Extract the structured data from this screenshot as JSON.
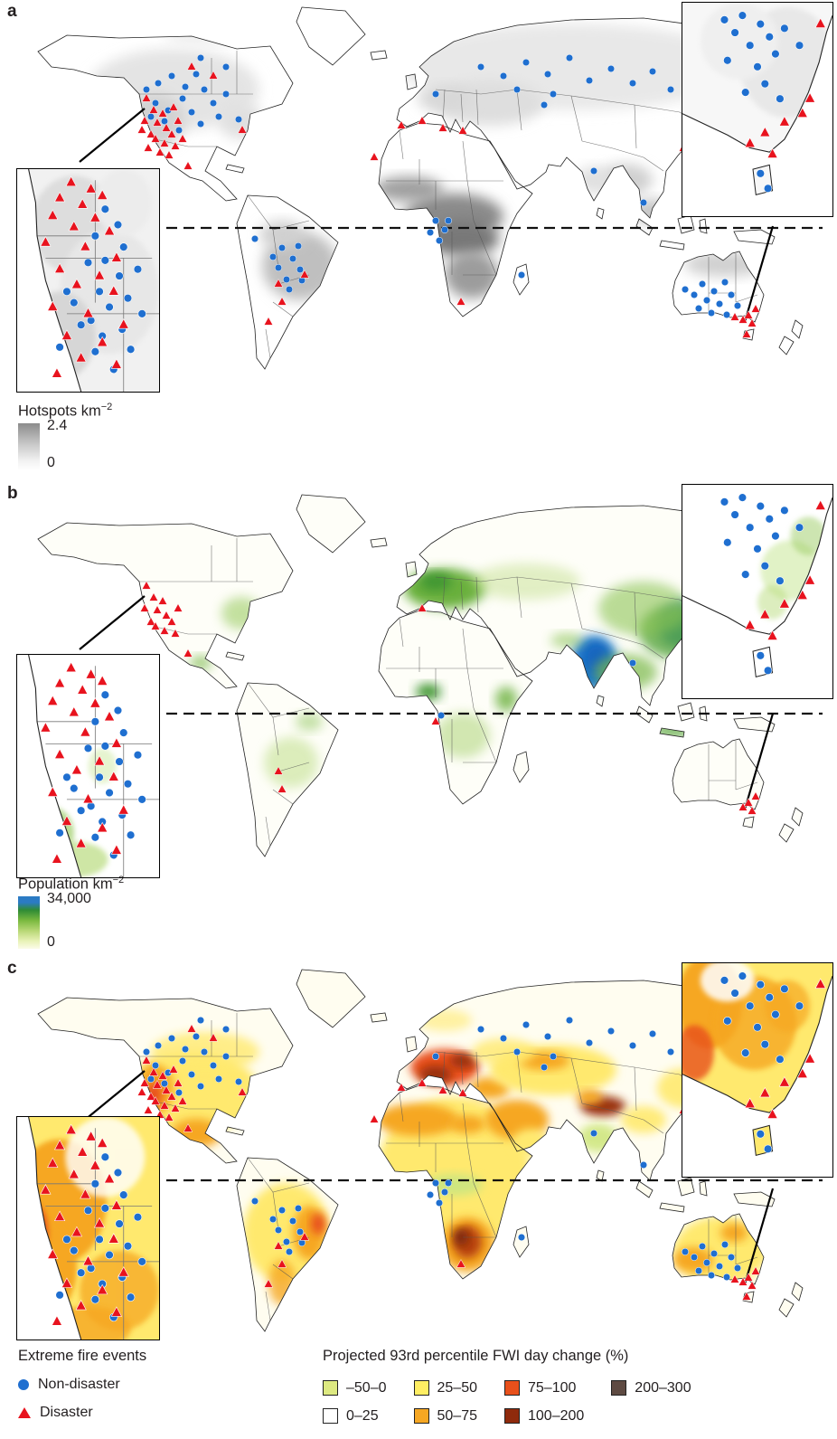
{
  "panels": {
    "a": {
      "label": "a",
      "legend_title": "Hotspots km",
      "legend_sup": "−2",
      "legend_max": "2.4",
      "legend_min": "0"
    },
    "b": {
      "label": "b",
      "legend_title": "Population km",
      "legend_sup": "−2",
      "legend_max": "34,000",
      "legend_min": "0"
    },
    "c": {
      "label": "c"
    }
  },
  "legend": {
    "events_title": "Extreme fire events",
    "non_disaster": "Non-disaster",
    "disaster": "Disaster",
    "fwi_title": "Projected 93rd percentile FWI day change (%)",
    "classes": [
      {
        "label": "–50–0",
        "color": "#dde981"
      },
      {
        "label": "0–25",
        "color": "#ffffff"
      },
      {
        "label": "25–50",
        "color": "#ffee63"
      },
      {
        "label": "50–75",
        "color": "#f6a723"
      },
      {
        "label": "75–100",
        "color": "#e8501b"
      },
      {
        "label": "100–200",
        "color": "#8f2a0c"
      },
      {
        "label": "200–300",
        "color": "#5e4a42"
      }
    ]
  },
  "colors": {
    "non_disaster": "#1f6fd0",
    "disaster": "#e8131e"
  },
  "events": {
    "circles": [
      [
        150,
        95
      ],
      [
        163,
        88
      ],
      [
        178,
        80
      ],
      [
        193,
        92
      ],
      [
        205,
        78
      ],
      [
        160,
        110
      ],
      [
        174,
        118
      ],
      [
        190,
        105
      ],
      [
        200,
        120
      ],
      [
        214,
        95
      ],
      [
        170,
        130
      ],
      [
        186,
        140
      ],
      [
        155,
        125
      ],
      [
        210,
        133
      ],
      [
        224,
        110
      ],
      [
        238,
        100
      ],
      [
        230,
        125
      ],
      [
        210,
        60
      ],
      [
        238,
        70
      ],
      [
        252,
        128
      ],
      [
        520,
        70
      ],
      [
        545,
        80
      ],
      [
        570,
        65
      ],
      [
        594,
        78
      ],
      [
        618,
        60
      ],
      [
        640,
        85
      ],
      [
        664,
        72
      ],
      [
        688,
        88
      ],
      [
        710,
        75
      ],
      [
        730,
        95
      ],
      [
        600,
        100
      ],
      [
        560,
        95
      ],
      [
        754,
        85
      ],
      [
        470,
        100
      ],
      [
        590,
        112
      ],
      [
        300,
        270
      ],
      [
        312,
        282
      ],
      [
        296,
        292
      ],
      [
        320,
        294
      ],
      [
        305,
        305
      ],
      [
        318,
        268
      ],
      [
        290,
        280
      ],
      [
        308,
        316
      ],
      [
        322,
        306
      ],
      [
        270,
        260
      ],
      [
        470,
        240
      ],
      [
        480,
        250
      ],
      [
        464,
        253
      ],
      [
        474,
        262
      ],
      [
        484,
        240
      ],
      [
        565,
        300
      ],
      [
        700,
        220
      ],
      [
        754,
        190
      ],
      [
        645,
        185
      ],
      [
        765,
        310
      ],
      [
        778,
        318
      ],
      [
        790,
        308
      ],
      [
        770,
        328
      ],
      [
        784,
        332
      ],
      [
        756,
        322
      ],
      [
        797,
        322
      ],
      [
        775,
        342
      ],
      [
        761,
        337
      ],
      [
        746,
        316
      ],
      [
        804,
        334
      ],
      [
        792,
        344
      ]
    ],
    "triangles": [
      [
        150,
        105
      ],
      [
        158,
        118
      ],
      [
        148,
        130
      ],
      [
        162,
        132
      ],
      [
        155,
        145
      ],
      [
        168,
        122
      ],
      [
        172,
        138
      ],
      [
        160,
        150
      ],
      [
        152,
        160
      ],
      [
        170,
        155
      ],
      [
        178,
        145
      ],
      [
        165,
        165
      ],
      [
        175,
        168
      ],
      [
        182,
        158
      ],
      [
        145,
        140
      ],
      [
        185,
        130
      ],
      [
        190,
        150
      ],
      [
        180,
        115
      ],
      [
        200,
        70
      ],
      [
        224,
        80
      ],
      [
        196,
        180
      ],
      [
        256,
        140
      ],
      [
        455,
        130
      ],
      [
        478,
        138
      ],
      [
        500,
        141
      ],
      [
        432,
        135
      ],
      [
        402,
        170
      ],
      [
        285,
        352
      ],
      [
        300,
        330
      ],
      [
        325,
        300
      ],
      [
        296,
        310
      ],
      [
        498,
        330
      ],
      [
        744,
        160
      ],
      [
        816,
        345
      ],
      [
        824,
        338
      ],
      [
        810,
        350
      ],
      [
        801,
        347
      ],
      [
        820,
        354
      ],
      [
        814,
        366
      ]
    ]
  },
  "events_b": {
    "circles": [
      [
        688,
        190
      ],
      [
        756,
        190
      ],
      [
        476,
        248
      ]
    ],
    "triangles": [
      [
        150,
        105
      ],
      [
        158,
        118
      ],
      [
        148,
        130
      ],
      [
        162,
        132
      ],
      [
        155,
        145
      ],
      [
        168,
        122
      ],
      [
        172,
        138
      ],
      [
        160,
        150
      ],
      [
        170,
        155
      ],
      [
        178,
        145
      ],
      [
        182,
        158
      ],
      [
        185,
        130
      ],
      [
        196,
        180
      ],
      [
        455,
        130
      ],
      [
        300,
        330
      ],
      [
        296,
        310
      ],
      [
        470,
        255
      ],
      [
        816,
        345
      ],
      [
        824,
        338
      ],
      [
        810,
        350
      ],
      [
        820,
        354
      ]
    ]
  },
  "insets": {
    "left": {
      "triangles": [
        [
          38,
          6
        ],
        [
          52,
          9
        ],
        [
          30,
          13
        ],
        [
          46,
          16
        ],
        [
          60,
          12
        ],
        [
          25,
          21
        ],
        [
          55,
          22
        ],
        [
          40,
          26
        ],
        [
          65,
          28
        ],
        [
          20,
          33
        ],
        [
          48,
          35
        ],
        [
          70,
          40
        ],
        [
          30,
          45
        ],
        [
          58,
          48
        ],
        [
          42,
          52
        ],
        [
          68,
          55
        ],
        [
          25,
          62
        ],
        [
          50,
          65
        ],
        [
          75,
          70
        ],
        [
          35,
          75
        ],
        [
          60,
          78
        ],
        [
          45,
          85
        ],
        [
          70,
          88
        ],
        [
          28,
          92
        ]
      ],
      "circles": [
        [
          62,
          18
        ],
        [
          71,
          25
        ],
        [
          55,
          30
        ],
        [
          75,
          35
        ],
        [
          62,
          41
        ],
        [
          50,
          42
        ],
        [
          72,
          48
        ],
        [
          58,
          55
        ],
        [
          78,
          58
        ],
        [
          65,
          62
        ],
        [
          52,
          68
        ],
        [
          74,
          72
        ],
        [
          60,
          75
        ],
        [
          80,
          81
        ],
        [
          55,
          82
        ],
        [
          68,
          90
        ],
        [
          40,
          60
        ],
        [
          35,
          55
        ],
        [
          45,
          70
        ],
        [
          30,
          80
        ],
        [
          85,
          45
        ],
        [
          88,
          65
        ]
      ]
    },
    "right": {
      "circles": [
        [
          28,
          8
        ],
        [
          40,
          6
        ],
        [
          52,
          10
        ],
        [
          35,
          14
        ],
        [
          58,
          16
        ],
        [
          45,
          20
        ],
        [
          62,
          24
        ],
        [
          30,
          27
        ],
        [
          50,
          30
        ],
        [
          68,
          12
        ],
        [
          78,
          20
        ],
        [
          55,
          38
        ],
        [
          42,
          42
        ],
        [
          65,
          45
        ],
        [
          52,
          80
        ],
        [
          57,
          87
        ]
      ],
      "triangles": [
        [
          80,
          52
        ],
        [
          68,
          56
        ],
        [
          55,
          61
        ],
        [
          85,
          45
        ],
        [
          45,
          66
        ],
        [
          60,
          71
        ],
        [
          92,
          10
        ]
      ]
    }
  }
}
